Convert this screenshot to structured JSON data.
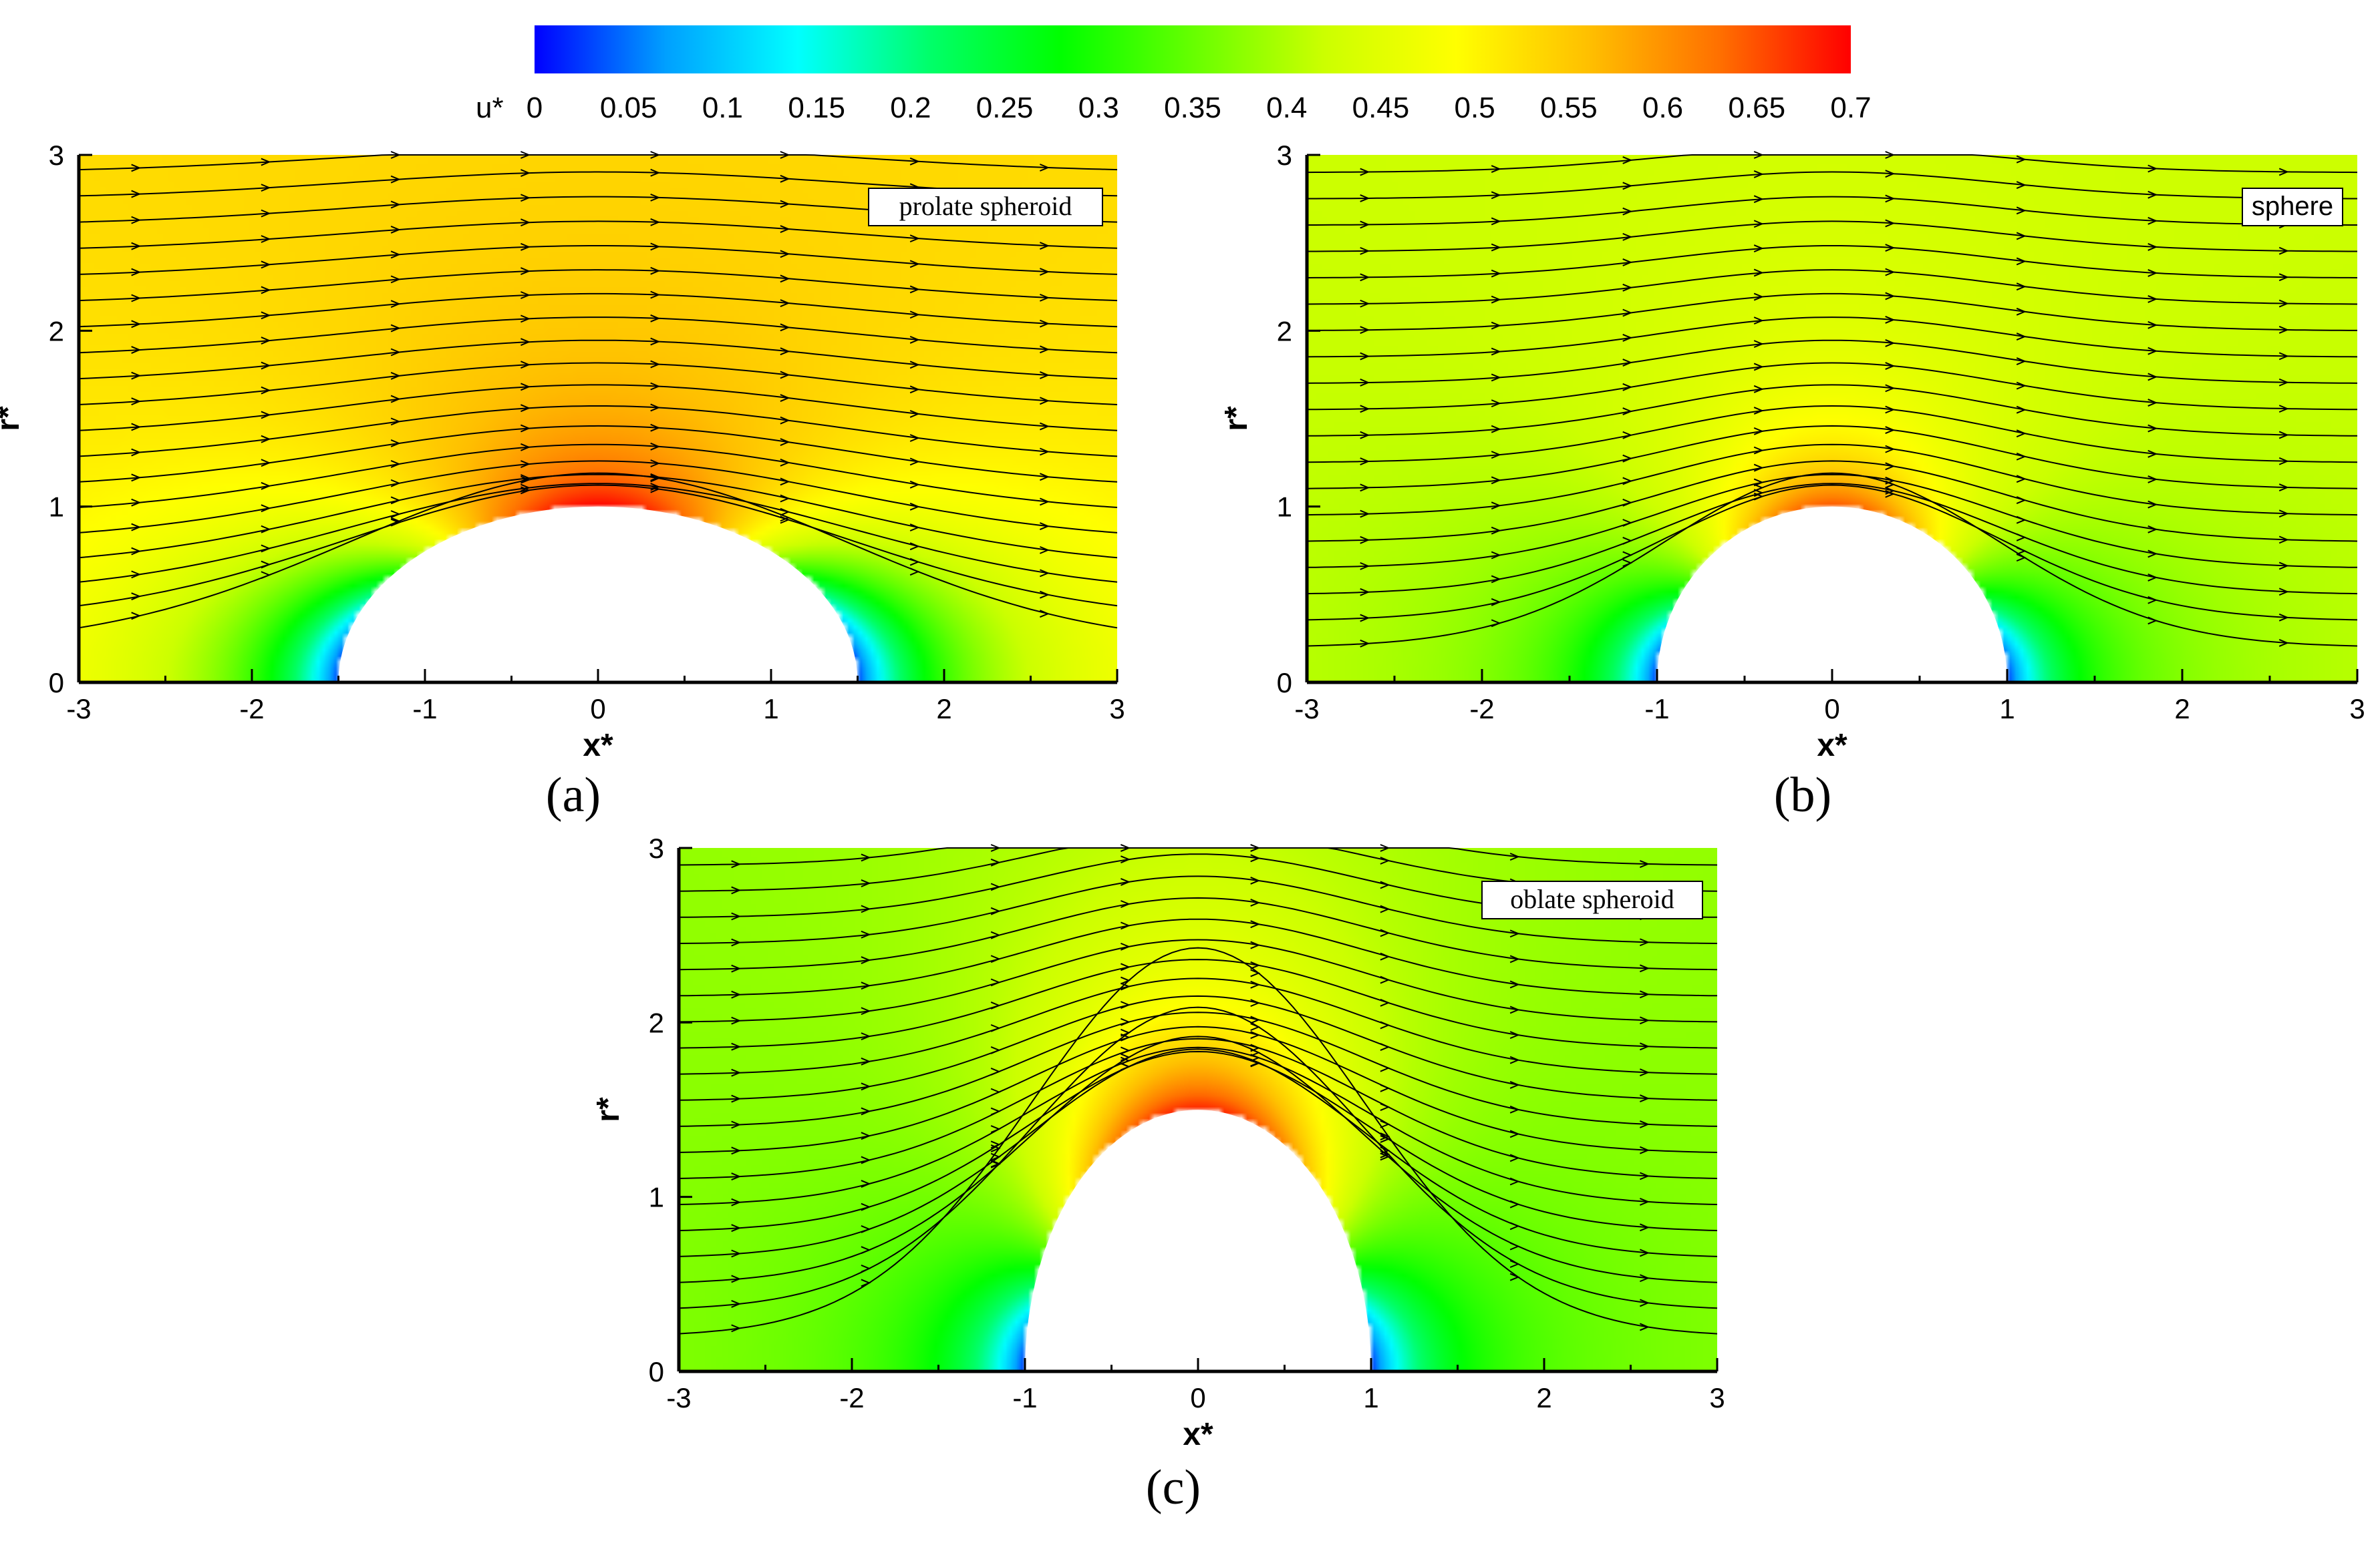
{
  "colorbar": {
    "label": "u*",
    "ticks": [
      "0",
      "0.05",
      "0.1",
      "0.15",
      "0.2",
      "0.25",
      "0.3",
      "0.35",
      "0.4",
      "0.45",
      "0.5",
      "0.55",
      "0.6",
      "0.65",
      "0.7"
    ],
    "range": [
      0,
      0.7
    ],
    "colormap": [
      "#0000ff",
      "#00a0ff",
      "#00ffff",
      "#00ff6a",
      "#00ff00",
      "#66ff00",
      "#ccff00",
      "#ffff00",
      "#ffc000",
      "#ff7000",
      "#ff0000"
    ]
  },
  "chart_data": [
    {
      "type": "heatmap",
      "panel_label": "(a)",
      "body_label": "prolate spheroid",
      "xlabel": "x*",
      "ylabel": "r*",
      "xlim": [
        -3,
        3
      ],
      "ylim": [
        0,
        3
      ],
      "xticks": [
        "-3",
        "-2",
        "-1",
        "0",
        "1",
        "2",
        "3"
      ],
      "yticks": [
        "0",
        "1",
        "2",
        "3"
      ],
      "body_semi_axis_x": 1.5,
      "body_semi_axis_r": 1.0,
      "freestream_u": 0.53,
      "max_u": 0.7,
      "streamline_start_r": [
        0.2,
        0.35,
        0.5,
        0.65,
        0.8,
        0.95,
        1.1,
        1.25,
        1.4,
        1.55,
        1.7,
        1.85,
        2.0,
        2.15,
        2.3,
        2.45,
        2.6,
        2.75,
        2.9
      ]
    },
    {
      "type": "heatmap",
      "panel_label": "(b)",
      "body_label": "sphere",
      "xlabel": "x*",
      "ylabel": "r*",
      "xlim": [
        -3,
        3
      ],
      "ylim": [
        0,
        3
      ],
      "xticks": [
        "-3",
        "-2",
        "-1",
        "0",
        "1",
        "2",
        "3"
      ],
      "yticks": [
        "0",
        "1",
        "2",
        "3"
      ],
      "body_semi_axis_x": 1.0,
      "body_semi_axis_r": 1.0,
      "freestream_u": 0.42,
      "max_u": 0.65,
      "streamline_start_r": [
        0.2,
        0.35,
        0.5,
        0.65,
        0.8,
        0.95,
        1.1,
        1.25,
        1.4,
        1.55,
        1.7,
        1.85,
        2.0,
        2.15,
        2.3,
        2.45,
        2.6,
        2.75,
        2.9
      ]
    },
    {
      "type": "heatmap",
      "panel_label": "(c)",
      "body_label": "oblate spheroid",
      "xlabel": "x*",
      "ylabel": "r*",
      "xlim": [
        -3,
        3
      ],
      "ylim": [
        0,
        3
      ],
      "xticks": [
        "-3",
        "-2",
        "-1",
        "0",
        "1",
        "2",
        "3"
      ],
      "yticks": [
        "0",
        "1",
        "2",
        "3"
      ],
      "body_semi_axis_x": 1.0,
      "body_semi_axis_r": 1.5,
      "freestream_u": 0.38,
      "max_u": 0.68,
      "streamline_start_r": [
        0.2,
        0.35,
        0.5,
        0.65,
        0.8,
        0.95,
        1.1,
        1.25,
        1.4,
        1.55,
        1.7,
        1.85,
        2.0,
        2.15,
        2.3,
        2.45,
        2.6,
        2.75,
        2.9
      ]
    }
  ]
}
